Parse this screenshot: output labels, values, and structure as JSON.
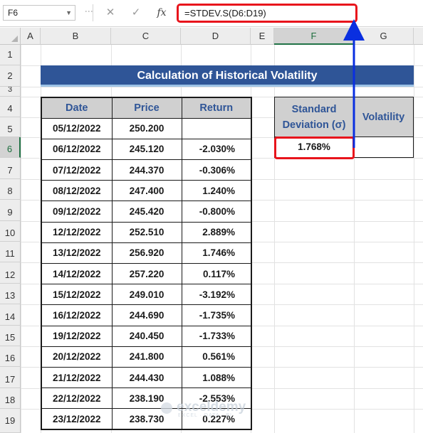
{
  "formula_bar": {
    "name_box": "F6",
    "cancel_symbol": "✕",
    "enter_symbol": "✓",
    "fx_symbol": "fx",
    "formula": "=STDEV.S(D6:D19)"
  },
  "columns": [
    "A",
    "B",
    "C",
    "D",
    "E",
    "F",
    "G"
  ],
  "selected_column": "F",
  "rows": [
    "1",
    "2",
    "3",
    "4",
    "5",
    "6",
    "7",
    "8",
    "9",
    "10",
    "11",
    "12",
    "13",
    "14",
    "15",
    "16",
    "17",
    "18",
    "19"
  ],
  "selected_row": "6",
  "title": "Calculation of Historical Volatility",
  "table": {
    "headers": [
      "Date",
      "Price",
      "Return"
    ],
    "rows": [
      [
        "05/12/2022",
        "250.200",
        ""
      ],
      [
        "06/12/2022",
        "245.120",
        "-2.030%"
      ],
      [
        "07/12/2022",
        "244.370",
        "-0.306%"
      ],
      [
        "08/12/2022",
        "247.400",
        "1.240%"
      ],
      [
        "09/12/2022",
        "245.420",
        "-0.800%"
      ],
      [
        "12/12/2022",
        "252.510",
        "2.889%"
      ],
      [
        "13/12/2022",
        "256.920",
        "1.746%"
      ],
      [
        "14/12/2022",
        "257.220",
        "0.117%"
      ],
      [
        "15/12/2022",
        "249.010",
        "-3.192%"
      ],
      [
        "16/12/2022",
        "244.690",
        "-1.735%"
      ],
      [
        "19/12/2022",
        "240.450",
        "-1.733%"
      ],
      [
        "20/12/2022",
        "241.800",
        "0.561%"
      ],
      [
        "21/12/2022",
        "244.430",
        "1.088%"
      ],
      [
        "22/12/2022",
        "238.190",
        "-2.553%"
      ],
      [
        "23/12/2022",
        "238.730",
        "0.227%"
      ]
    ]
  },
  "side": {
    "header_std_line1": "Standard",
    "header_std_line2": "Deviation (σ)",
    "header_vol": "Volatility",
    "std_value": "1.768%",
    "vol_value": ""
  },
  "watermark": {
    "name": "exceldemy",
    "tagline": "EXCEL · DATA · BI"
  },
  "colors": {
    "title_bg": "#2f5597",
    "header_text": "#2f5597",
    "header_bg": "#d0d0d0",
    "highlight": "#e8141c",
    "arrow": "#0a2fe0",
    "excel_green": "#217346"
  }
}
